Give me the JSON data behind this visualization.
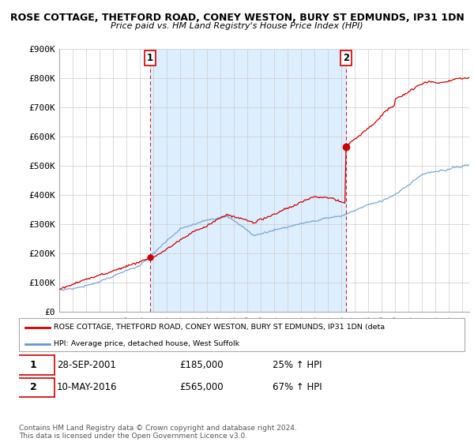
{
  "title_line1": "ROSE COTTAGE, THETFORD ROAD, CONEY WESTON, BURY ST EDMUNDS, IP31 1DN",
  "title_line2": "Price paid vs. HM Land Registry's House Price Index (HPI)",
  "ylim": [
    0,
    900000
  ],
  "yticks": [
    0,
    100000,
    200000,
    300000,
    400000,
    500000,
    600000,
    700000,
    800000,
    900000
  ],
  "ytick_labels": [
    "£0",
    "£100K",
    "£200K",
    "£300K",
    "£400K",
    "£500K",
    "£600K",
    "£700K",
    "£800K",
    "£900K"
  ],
  "sale1_date_num": 2001.75,
  "sale1_price": 185000,
  "sale2_date_num": 2016.36,
  "sale2_price": 565000,
  "hpi_color": "#6699cc",
  "price_color": "#cc0000",
  "shaded_color": "#ddeeff",
  "legend_label_price": "ROSE COTTAGE, THETFORD ROAD, CONEY WESTON, BURY ST EDMUNDS, IP31 1DN (deta",
  "legend_label_hpi": "HPI: Average price, detached house, West Suffolk",
  "note1_date": "28-SEP-2001",
  "note1_price": "£185,000",
  "note1_hpi": "25% ↑ HPI",
  "note2_date": "10-MAY-2016",
  "note2_price": "£565,000",
  "note2_hpi": "67% ↑ HPI",
  "footer": "Contains HM Land Registry data © Crown copyright and database right 2024.\nThis data is licensed under the Open Government Licence v3.0.",
  "grid_color": "#cccccc",
  "bg_color": "#ffffff",
  "xlim_left": 1995.0,
  "xlim_right": 2025.5
}
